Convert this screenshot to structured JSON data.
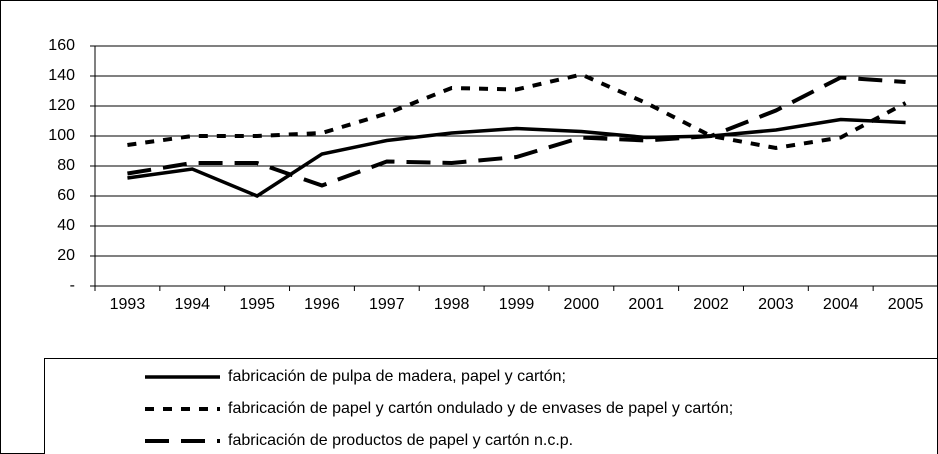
{
  "chart_data": {
    "type": "line",
    "categories": [
      "1993",
      "1994",
      "1995",
      "1996",
      "1997",
      "1998",
      "1999",
      "2000",
      "2001",
      "2002",
      "2003",
      "2004",
      "2005"
    ],
    "series": [
      {
        "name": "fabricación de pulpa de madera, papel y cartón;",
        "color": "#000000",
        "dash": "solid",
        "values": [
          72,
          78,
          60,
          88,
          97,
          102,
          105,
          103,
          99,
          100,
          104,
          111,
          109
        ]
      },
      {
        "name": "fabricación de papel y cartón ondulado y de envases de papel y cartón;",
        "color": "#000000",
        "dash": "short",
        "values": [
          94,
          100,
          100,
          102,
          115,
          132,
          131,
          141,
          122,
          100,
          92,
          99,
          122
        ]
      },
      {
        "name": "fabricación de productos de papel y cartón n.c.p.",
        "color": "#000000",
        "dash": "long",
        "values": [
          75,
          82,
          82,
          67,
          83,
          82,
          86,
          99,
          97,
          100,
          117,
          139,
          136
        ]
      }
    ],
    "ylim": [
      0,
      160
    ],
    "yticks": [
      {
        "value": 0,
        "label": "-"
      },
      20,
      40,
      60,
      80,
      100,
      120,
      140,
      160
    ],
    "grid": true
  }
}
